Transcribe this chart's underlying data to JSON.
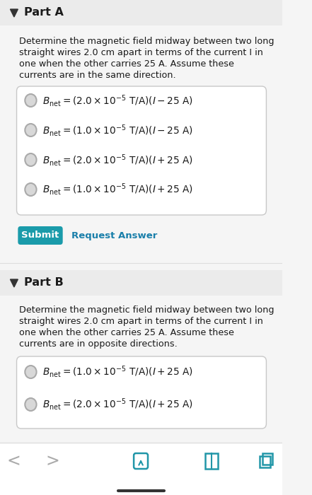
{
  "bg_color": "#f5f5f5",
  "white": "#ffffff",
  "part_a_header": "Part A",
  "part_b_header": "Part B",
  "submit_color": "#1a9baa",
  "submit_text": "Submit",
  "request_text": "Request Answer",
  "request_color": "#1a7faa",
  "toolbar_color": "#ffffff",
  "divider_color": "#cccccc",
  "text_color": "#1a1a1a",
  "header_bg": "#ebebeb",
  "circle_color": "#d8d8d8",
  "circle_edge": "#aaaaaa",
  "part_a_lines": [
    "Determine the magnetic field midway between two long",
    "straight wires 2.0 cm apart in terms of the current I in",
    "one when the other carries 25 A. Assume these",
    "currents are in the same direction."
  ],
  "part_b_lines": [
    "Determine the magnetic field midway between two long",
    "straight wires 2.0 cm apart in terms of the current I in",
    "one when the other carries 25 A. Assume these",
    "currents are in opposite directions."
  ]
}
